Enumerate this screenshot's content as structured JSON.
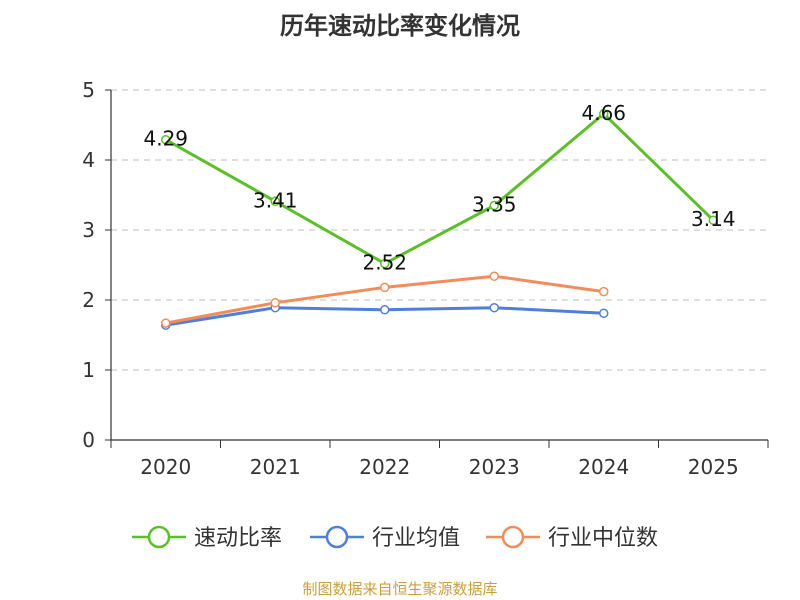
{
  "title": "历年速动比率变化情况",
  "source": "制图数据来自恒生聚源数据库",
  "colors": {
    "quick_ratio": "#5cbf2a",
    "industry_avg": "#4f7fd9",
    "industry_median": "#f28c5a",
    "grid": "#cccccc",
    "axis": "#333333"
  },
  "chart_data": {
    "type": "line",
    "title": "历年速动比率变化情况",
    "categories": [
      "2020",
      "2021",
      "2022",
      "2023",
      "2024",
      "2025"
    ],
    "ylim": [
      0,
      5
    ],
    "yticks": [
      0,
      1,
      2,
      3,
      4,
      5
    ],
    "grid": true,
    "legend_position": "bottom",
    "series": [
      {
        "key": "quick_ratio",
        "name": "速动比率",
        "values": [
          4.29,
          3.41,
          2.52,
          3.35,
          4.66,
          3.14
        ],
        "labels": [
          "4.29",
          "3.41",
          "2.52",
          "3.35",
          "4.66",
          "3.14"
        ]
      },
      {
        "key": "industry_avg",
        "name": "行业均值",
        "values": [
          1.64,
          1.89,
          1.86,
          1.89,
          1.81,
          null
        ]
      },
      {
        "key": "industry_median",
        "name": "行业中位数",
        "values": [
          1.67,
          1.96,
          2.18,
          2.34,
          2.12,
          null
        ]
      }
    ]
  }
}
